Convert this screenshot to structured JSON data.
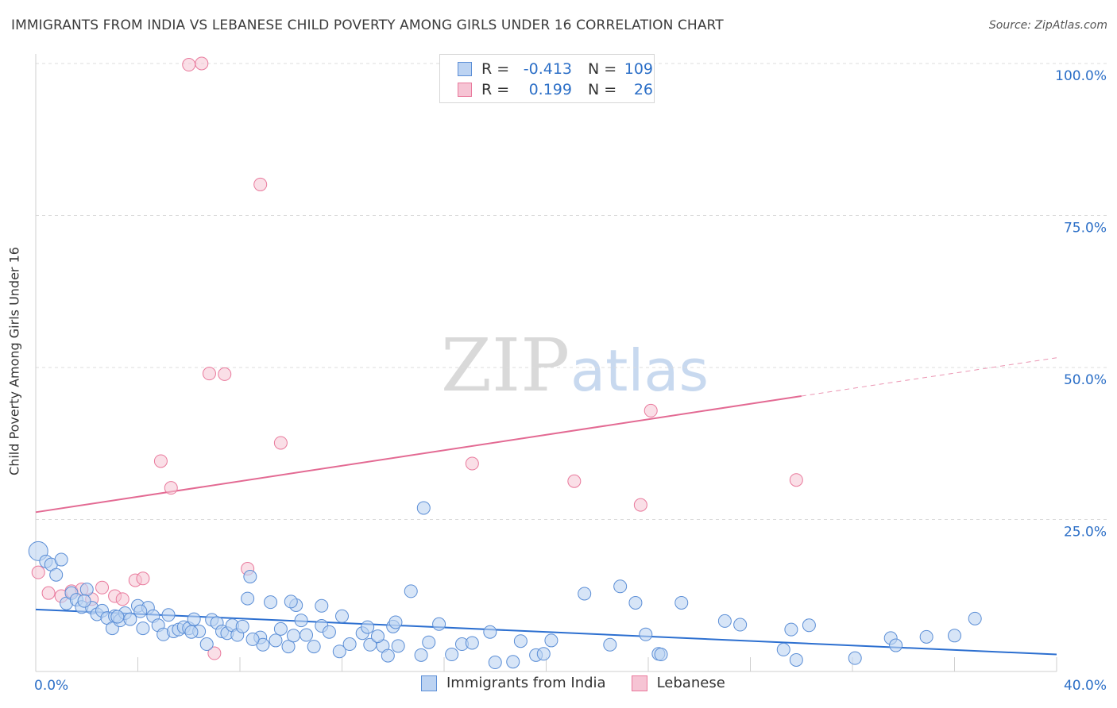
{
  "title": "IMMIGRANTS FROM INDIA VS LEBANESE CHILD POVERTY AMONG GIRLS UNDER 16 CORRELATION CHART",
  "source": "Source: ZipAtlas.com",
  "watermark": {
    "zip": "ZIP",
    "atlas": "atlas"
  },
  "legend_top": {
    "rows": [
      {
        "r_label": "R =",
        "r_value": "-0.413",
        "n_label": "N =",
        "n_value": "109"
      },
      {
        "r_label": "R =",
        "r_value": "0.199",
        "n_label": "N =",
        "n_value": "26"
      }
    ]
  },
  "chart_data": {
    "type": "scatter",
    "title": "IMMIGRANTS FROM INDIA VS LEBANESE CHILD POVERTY AMONG GIRLS UNDER 16 CORRELATION CHART",
    "xlabel": "",
    "ylabel": "Child Poverty Among Girls Under 16",
    "xlim": [
      0,
      40
    ],
    "ylim": [
      0,
      100
    ],
    "x_tick_labels": [
      "0.0%",
      "40.0%"
    ],
    "y_tick_labels": [
      {
        "value": 100,
        "label": "100.0%"
      },
      {
        "value": 75,
        "label": "75.0%"
      },
      {
        "value": 50,
        "label": "50.0%"
      },
      {
        "value": 25,
        "label": "25.0%"
      }
    ],
    "grid": true,
    "colors": {
      "india": "#5b8ed6",
      "india_fill": "#bcd3f2",
      "lebanese": "#e9799c",
      "lebanese_fill": "#f6c4d4",
      "india_line": "#2c6fd0",
      "lebanese_line": "#e36a93",
      "tick_label": "#2c6fc7"
    },
    "series": [
      {
        "name": "Immigrants from India",
        "r": -0.413,
        "n": 109,
        "trend": {
          "x0": 0,
          "y0": 10.2,
          "x1": 40,
          "y1": 2.8
        },
        "points": [
          [
            0.1,
            19.8
          ],
          [
            0.4,
            18.1
          ],
          [
            0.6,
            17.6
          ],
          [
            0.8,
            15.9
          ],
          [
            1.0,
            18.4
          ],
          [
            1.2,
            11.2
          ],
          [
            1.4,
            12.9
          ],
          [
            1.6,
            11.8
          ],
          [
            1.8,
            10.6
          ],
          [
            2.0,
            13.5
          ],
          [
            2.2,
            10.5
          ],
          [
            2.4,
            9.4
          ],
          [
            2.6,
            10.0
          ],
          [
            2.8,
            8.8
          ],
          [
            3.0,
            7.1
          ],
          [
            3.1,
            9.1
          ],
          [
            3.3,
            8.4
          ],
          [
            3.5,
            9.6
          ],
          [
            3.7,
            8.6
          ],
          [
            4.0,
            10.8
          ],
          [
            4.2,
            7.1
          ],
          [
            4.4,
            10.5
          ],
          [
            4.6,
            9.1
          ],
          [
            4.8,
            7.6
          ],
          [
            5.0,
            6.1
          ],
          [
            5.2,
            9.3
          ],
          [
            5.4,
            6.6
          ],
          [
            5.6,
            6.9
          ],
          [
            5.8,
            7.3
          ],
          [
            6.0,
            7.1
          ],
          [
            6.2,
            8.6
          ],
          [
            6.4,
            6.6
          ],
          [
            6.7,
            4.5
          ],
          [
            6.9,
            8.5
          ],
          [
            7.1,
            8.0
          ],
          [
            7.3,
            6.6
          ],
          [
            7.5,
            6.3
          ],
          [
            7.7,
            7.6
          ],
          [
            7.9,
            6.0
          ],
          [
            8.1,
            7.4
          ],
          [
            8.3,
            12.0
          ],
          [
            8.4,
            15.6
          ],
          [
            8.8,
            5.6
          ],
          [
            8.9,
            4.4
          ],
          [
            9.2,
            11.4
          ],
          [
            9.4,
            5.1
          ],
          [
            9.6,
            7.0
          ],
          [
            9.9,
            4.1
          ],
          [
            10.1,
            5.9
          ],
          [
            10.2,
            10.9
          ],
          [
            10.4,
            8.4
          ],
          [
            10.6,
            6.0
          ],
          [
            10.9,
            4.1
          ],
          [
            11.2,
            7.5
          ],
          [
            11.5,
            6.5
          ],
          [
            11.9,
            3.3
          ],
          [
            12.0,
            9.1
          ],
          [
            12.3,
            4.5
          ],
          [
            12.8,
            6.3
          ],
          [
            13.0,
            7.3
          ],
          [
            13.1,
            4.4
          ],
          [
            13.6,
            4.2
          ],
          [
            13.8,
            2.6
          ],
          [
            14.0,
            7.4
          ],
          [
            14.2,
            4.2
          ],
          [
            14.7,
            13.2
          ],
          [
            15.1,
            2.7
          ],
          [
            15.4,
            4.8
          ],
          [
            15.8,
            7.8
          ],
          [
            16.3,
            2.8
          ],
          [
            16.7,
            4.5
          ],
          [
            17.1,
            4.7
          ],
          [
            17.8,
            6.5
          ],
          [
            18.0,
            1.5
          ],
          [
            18.7,
            1.6
          ],
          [
            19.0,
            5.0
          ],
          [
            19.6,
            2.7
          ],
          [
            19.9,
            2.9
          ],
          [
            20.2,
            5.1
          ],
          [
            21.5,
            12.8
          ],
          [
            22.5,
            4.4
          ],
          [
            22.9,
            14.0
          ],
          [
            23.5,
            11.3
          ],
          [
            23.9,
            6.1
          ],
          [
            24.4,
            2.9
          ],
          [
            24.5,
            2.8
          ],
          [
            25.3,
            11.3
          ],
          [
            27.0,
            8.3
          ],
          [
            27.6,
            7.7
          ],
          [
            29.3,
            3.6
          ],
          [
            29.6,
            6.9
          ],
          [
            29.8,
            1.9
          ],
          [
            30.3,
            7.6
          ],
          [
            32.1,
            2.2
          ],
          [
            33.5,
            5.5
          ],
          [
            33.7,
            4.3
          ],
          [
            34.9,
            5.7
          ],
          [
            36.0,
            5.9
          ],
          [
            36.8,
            8.7
          ],
          [
            10.0,
            11.5
          ],
          [
            11.2,
            10.8
          ],
          [
            15.2,
            26.9
          ],
          [
            3.2,
            9.0
          ],
          [
            4.1,
            9.9
          ],
          [
            1.9,
            11.6
          ],
          [
            6.1,
            6.5
          ],
          [
            8.5,
            5.3
          ],
          [
            13.4,
            5.8
          ],
          [
            14.1,
            8.1
          ]
        ]
      },
      {
        "name": "Lebanese",
        "r": 0.199,
        "n": 26,
        "trend": {
          "x0": 0,
          "y0": 26.2,
          "x1": 30,
          "y1": 45.3,
          "dash_to_x": 40,
          "dash_to_y": 51.6
        },
        "points": [
          [
            0.1,
            16.3
          ],
          [
            0.5,
            12.9
          ],
          [
            1.0,
            12.4
          ],
          [
            1.4,
            13.2
          ],
          [
            1.8,
            13.5
          ],
          [
            2.2,
            11.9
          ],
          [
            2.6,
            13.8
          ],
          [
            3.1,
            12.4
          ],
          [
            3.4,
            11.9
          ],
          [
            3.9,
            15.0
          ],
          [
            4.2,
            15.3
          ],
          [
            4.9,
            34.6
          ],
          [
            5.3,
            30.2
          ],
          [
            6.0,
            99.8
          ],
          [
            6.5,
            100.0
          ],
          [
            6.8,
            49.0
          ],
          [
            7.0,
            3.0
          ],
          [
            7.4,
            48.9
          ],
          [
            8.3,
            16.9
          ],
          [
            8.8,
            80.1
          ],
          [
            9.6,
            37.6
          ],
          [
            17.1,
            34.2
          ],
          [
            21.1,
            31.3
          ],
          [
            23.7,
            27.4
          ],
          [
            24.1,
            42.9
          ],
          [
            29.8,
            31.5
          ]
        ]
      }
    ]
  },
  "bottom_legend": {
    "india_label": "Immigrants from India",
    "lebanese_label": "Lebanese"
  }
}
